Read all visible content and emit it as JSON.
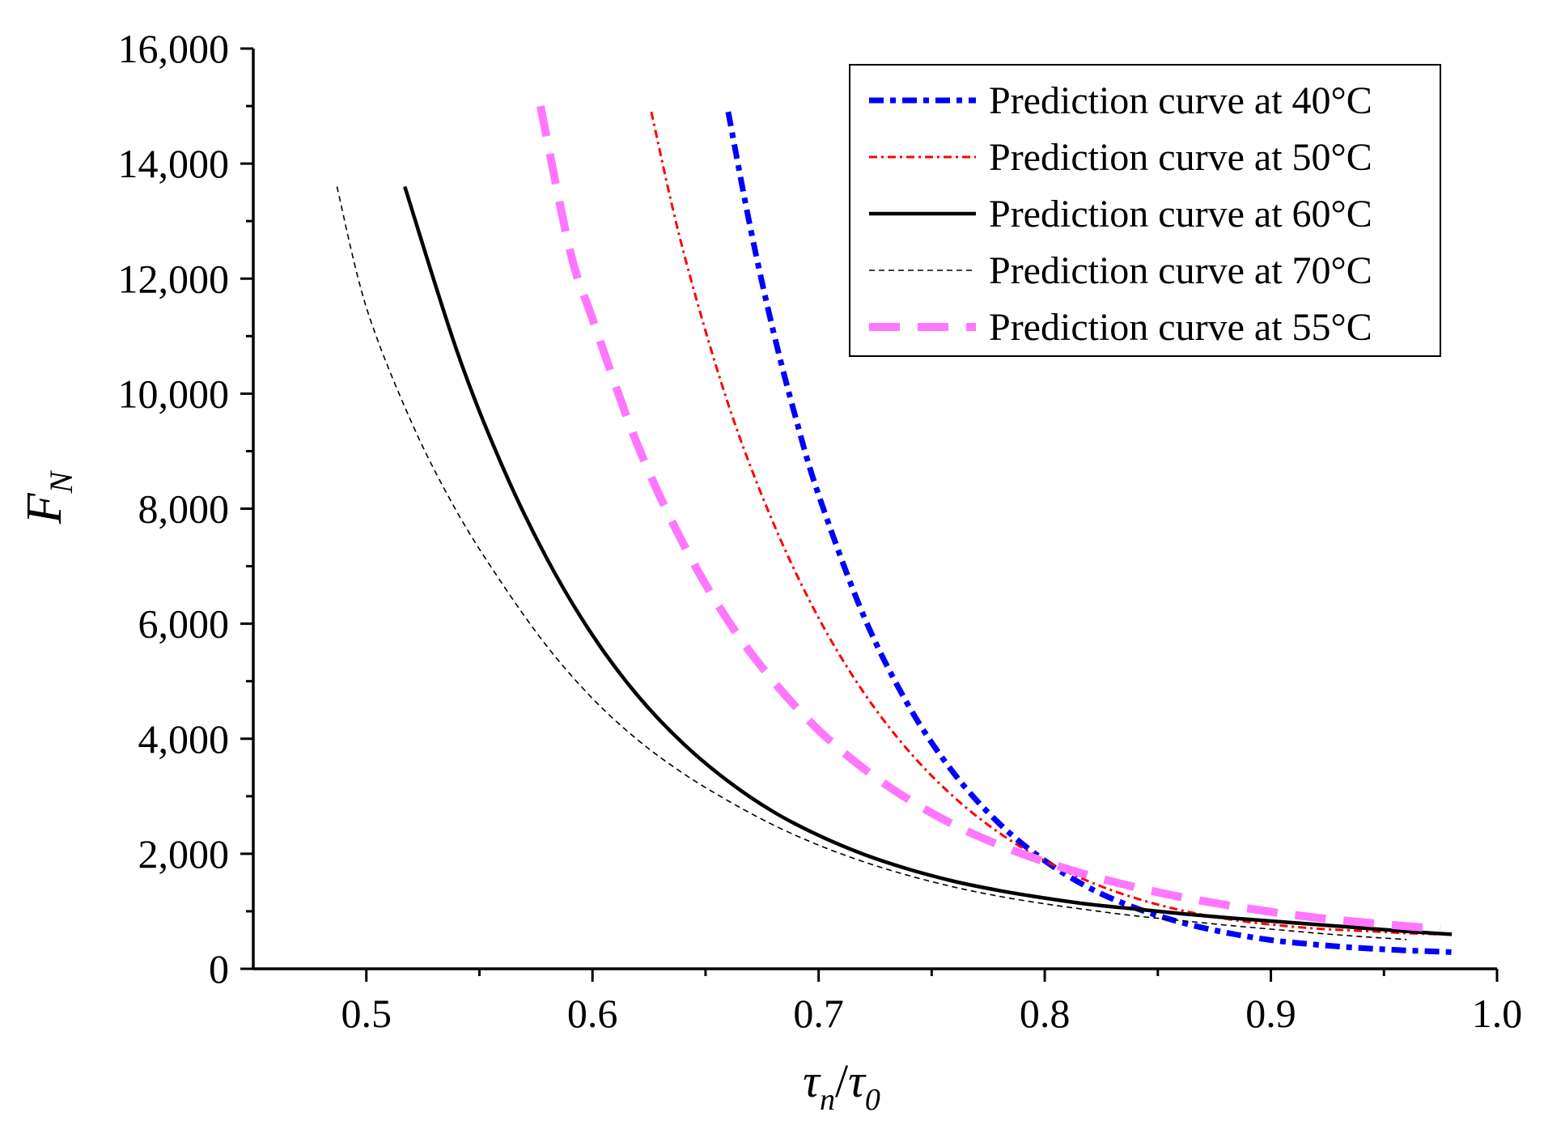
{
  "chart_data": {
    "type": "line",
    "title": "",
    "xlabel": {
      "main1": "τ",
      "sub1": "n",
      "slash": "/",
      "main2": "τ",
      "sub2": "0"
    },
    "ylabel": {
      "main": "F",
      "sub": "N"
    },
    "xlim": [
      0.45,
      1.0
    ],
    "ylim": [
      0,
      16000
    ],
    "x_ticks": [
      0.5,
      0.6,
      0.7,
      0.8,
      0.9,
      1.0
    ],
    "x_tick_labels": [
      "0.5",
      "0.6",
      "0.7",
      "0.8",
      "0.9",
      "1.0"
    ],
    "y_ticks": [
      0,
      2000,
      4000,
      6000,
      8000,
      10000,
      12000,
      14000,
      16000
    ],
    "y_tick_labels": [
      "0",
      "2,000",
      "4,000",
      "6,000",
      "8,000",
      "10,000",
      "12,000",
      "14,000",
      "16,000"
    ],
    "grid": false,
    "legend_position": "top-right",
    "series": [
      {
        "name": "Prediction curve at 40°C",
        "color": "#0000ff",
        "style": "dash-dot",
        "x": [
          0.66,
          0.67,
          0.68,
          0.69,
          0.7,
          0.72,
          0.74,
          0.76,
          0.78,
          0.8,
          0.82,
          0.84,
          0.86,
          0.88,
          0.9,
          0.92,
          0.94,
          0.96,
          0.98
        ],
        "y": [
          14900,
          12850,
          11080,
          9560,
          8240,
          6130,
          4560,
          3390,
          2520,
          1880,
          1400,
          1060,
          810,
          630,
          500,
          420,
          360,
          320,
          290
        ]
      },
      {
        "name": "Prediction curve at 50°C",
        "color": "#ff0000",
        "style": "dash-dot-fine",
        "x": [
          0.626,
          0.64,
          0.66,
          0.68,
          0.7,
          0.72,
          0.74,
          0.76,
          0.78,
          0.8,
          0.82,
          0.84,
          0.86,
          0.88,
          0.9,
          0.92,
          0.94,
          0.96,
          0.975
        ],
        "y": [
          14900,
          12500,
          9820,
          7750,
          6100,
          4800,
          3780,
          2980,
          2360,
          1880,
          1510,
          1230,
          1020,
          870,
          770,
          700,
          660,
          620,
          600
        ]
      },
      {
        "name": "Prediction curve at 60°C",
        "color": "#000000",
        "style": "solid",
        "x": [
          0.517,
          0.54,
          0.56,
          0.58,
          0.6,
          0.62,
          0.64,
          0.66,
          0.68,
          0.7,
          0.72,
          0.74,
          0.76,
          0.78,
          0.8,
          0.82,
          0.84,
          0.86,
          0.88,
          0.9,
          0.92,
          0.94,
          0.96,
          0.98
        ],
        "y": [
          13600,
          10750,
          8750,
          7120,
          5800,
          4750,
          3920,
          3260,
          2730,
          2320,
          1990,
          1730,
          1520,
          1360,
          1230,
          1120,
          1040,
          960,
          890,
          830,
          770,
          710,
          650,
          600
        ]
      },
      {
        "name": "Prediction curve at 70°C",
        "color": "#000000",
        "style": "short-dash",
        "x": [
          0.487,
          0.5,
          0.52,
          0.54,
          0.56,
          0.58,
          0.6,
          0.62,
          0.64,
          0.66,
          0.68,
          0.7,
          0.72,
          0.74,
          0.76,
          0.78,
          0.8,
          0.82,
          0.84,
          0.86,
          0.88,
          0.9,
          0.92,
          0.94,
          0.96
        ],
        "y": [
          13600,
          11500,
          9500,
          7950,
          6700,
          5600,
          4700,
          3980,
          3400,
          2920,
          2500,
          2150,
          1860,
          1620,
          1420,
          1260,
          1130,
          1020,
          920,
          840,
          760,
          690,
          620,
          560,
          510
        ]
      },
      {
        "name": "Prediction curve at 55°C",
        "color": "#ff77ff",
        "style": "long-dash",
        "x": [
          0.577,
          0.59,
          0.6,
          0.62,
          0.64,
          0.66,
          0.68,
          0.7,
          0.72,
          0.74,
          0.76,
          0.78,
          0.8,
          0.82,
          0.84,
          0.86,
          0.88,
          0.9,
          0.92,
          0.94,
          0.96,
          0.975
        ],
        "y": [
          15000,
          12500,
          11300,
          9100,
          7400,
          6050,
          5000,
          4150,
          3480,
          2940,
          2500,
          2150,
          1860,
          1620,
          1420,
          1250,
          1110,
          990,
          890,
          810,
          740,
          700
        ]
      }
    ]
  }
}
